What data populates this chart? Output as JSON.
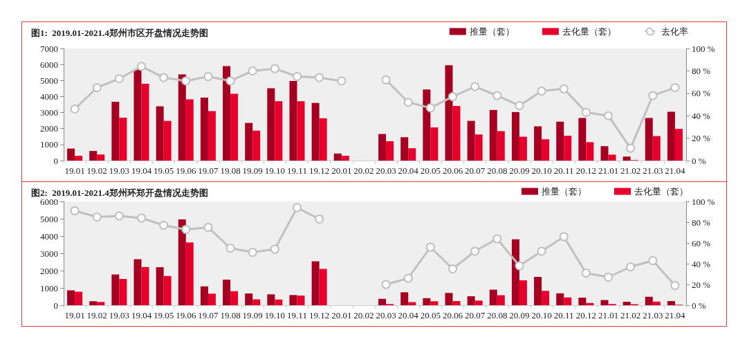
{
  "chart_data": [
    {
      "type": "bar",
      "title": "图1:  2019.01-2021.4郑州市区开盘情况走势图",
      "categories": [
        "19.01",
        "19.02",
        "19.03",
        "19.04",
        "19.05",
        "19.06",
        "19.07",
        "19.08",
        "19.09",
        "19.10",
        "19.11",
        "19.12",
        "20.01",
        "20.02",
        "20.03",
        "20.04",
        "20.05",
        "20.06",
        "20.07",
        "20.08",
        "20.09",
        "20.10",
        "20.11",
        "20.12",
        "21.01",
        "21.02",
        "21.03",
        "21.04"
      ],
      "series": [
        {
          "name": "推量（套）",
          "color": "#a50021",
          "values": [
            750,
            600,
            3670,
            5680,
            3390,
            5380,
            3930,
            5900,
            2350,
            4520,
            4970,
            3600,
            440,
            null,
            1660,
            1460,
            4440,
            5950,
            2480,
            3160,
            3030,
            2140,
            2430,
            2660,
            900,
            250,
            2660,
            3050
          ]
        },
        {
          "name": "去化量（套）",
          "color": "#e8002d",
          "values": [
            300,
            380,
            2680,
            4800,
            2480,
            3820,
            3090,
            4170,
            1870,
            3700,
            3700,
            2640,
            300,
            null,
            1210,
            770,
            2070,
            3410,
            1630,
            1840,
            1490,
            1330,
            1550,
            1150,
            370,
            30,
            1530,
            1980
          ]
        },
        {
          "name": "去化率",
          "type": "line",
          "axis": "y2",
          "color": "#c0c0c0",
          "marker": "circle",
          "line_style": "solid",
          "values": [
            46,
            65,
            73,
            84,
            74,
            71,
            75,
            71,
            80,
            82,
            75,
            74,
            71,
            null,
            72,
            52,
            47,
            57,
            66,
            58,
            49,
            62,
            64,
            43,
            40,
            11,
            58,
            65
          ]
        }
      ],
      "ylim": [
        0,
        7000
      ],
      "yticks": [
        0,
        1000,
        2000,
        3000,
        4000,
        5000,
        6000,
        7000
      ],
      "y2lim": [
        0,
        100
      ],
      "y2ticks": [
        {
          "value": 0,
          "label": "0 %"
        },
        {
          "value": 20,
          "label": "20 %"
        },
        {
          "value": 40,
          "label": "40 %"
        },
        {
          "value": 60,
          "label": "60 %"
        },
        {
          "value": 80,
          "label": "80 %"
        },
        {
          "value": 100,
          "label": "100 %"
        }
      ],
      "legend": "top right"
    },
    {
      "type": "bar",
      "title": "图2:  2019.01-2021.4郑州环郑开盘情况走势图",
      "categories": [
        "19.01",
        "19.02",
        "19.03",
        "19.04",
        "19.05",
        "19.06",
        "19.07",
        "19.08",
        "19.09",
        "19.10",
        "19.11",
        "19.12",
        "20.01",
        "20.02",
        "20.03",
        "20.04",
        "20.05",
        "20.06",
        "20.07",
        "20.08",
        "20.09",
        "20.10",
        "20.11",
        "20.12",
        "21.01",
        "21.02",
        "21.03",
        "21.04"
      ],
      "series": [
        {
          "name": "推量（套）",
          "color": "#a50021",
          "values": [
            860,
            230,
            1780,
            2660,
            2200,
            4960,
            1090,
            1480,
            680,
            630,
            590,
            2540,
            null,
            null,
            370,
            750,
            410,
            710,
            520,
            900,
            3810,
            1640,
            690,
            440,
            300,
            200,
            490,
            240
          ]
        },
        {
          "name": "去化量（套）",
          "color": "#e8002d",
          "values": [
            780,
            190,
            1520,
            2210,
            1690,
            3630,
            670,
            810,
            340,
            330,
            560,
            2100,
            null,
            null,
            70,
            180,
            230,
            240,
            270,
            580,
            1440,
            830,
            450,
            130,
            70,
            60,
            210,
            30
          ]
        },
        {
          "type": "line",
          "axis": "y2",
          "color": "#c0c0c0",
          "marker": "circle",
          "line_style": "solid",
          "values": [
            91,
            85,
            86,
            84,
            77,
            73,
            75,
            55,
            51,
            54,
            94,
            83,
            null,
            null,
            20,
            26,
            56,
            35,
            52,
            64,
            38,
            52,
            66,
            31,
            27,
            37,
            43,
            19
          ]
        }
      ],
      "ylim": [
        0,
        6000
      ],
      "yticks": [
        0,
        1000,
        2000,
        3000,
        4000,
        5000,
        6000
      ],
      "y2lim": [
        0,
        100
      ],
      "y2ticks": [
        {
          "value": 0,
          "label": "0 %"
        },
        {
          "value": 20,
          "label": "20 %"
        },
        {
          "value": 40,
          "label": "40 %"
        },
        {
          "value": 60,
          "label": "60 %"
        },
        {
          "value": 80,
          "label": "80 %"
        },
        {
          "value": 100,
          "label": "100 %"
        }
      ],
      "legend": "top right"
    }
  ]
}
